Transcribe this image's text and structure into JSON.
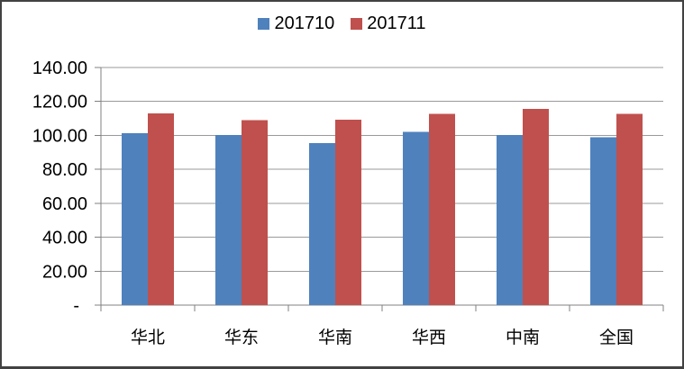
{
  "frame": {
    "background": "#FFFFFF",
    "border_color": "#424242"
  },
  "legend": {
    "items": [
      {
        "label": "201710",
        "color": "#4F81BD"
      },
      {
        "label": "201711",
        "color": "#C0504D"
      }
    ]
  },
  "chart_data": {
    "type": "bar",
    "title": "",
    "categories": [
      "华北",
      "华东",
      "华南",
      "华西",
      "中南",
      "全国"
    ],
    "series": [
      {
        "name": "201710",
        "color": "#4F81BD",
        "values": [
          101.4,
          100.3,
          95.5,
          102.0,
          100.3,
          99.0
        ]
      },
      {
        "name": "201711",
        "color": "#C0504D",
        "values": [
          113.0,
          109.0,
          109.3,
          112.6,
          115.5,
          112.8
        ]
      }
    ],
    "xlabel": "",
    "ylabel": "",
    "ylim": [
      0,
      140
    ],
    "ytick_step": 20,
    "ytick_labels": [
      "-",
      "20.00",
      "40.00",
      "60.00",
      "80.00",
      "100.00",
      "120.00",
      "140.00"
    ],
    "grid": true,
    "legend_position": "top-center",
    "axis_color": "#808080",
    "gridline_color": "#9A9A9A",
    "text_color": "#000000"
  }
}
